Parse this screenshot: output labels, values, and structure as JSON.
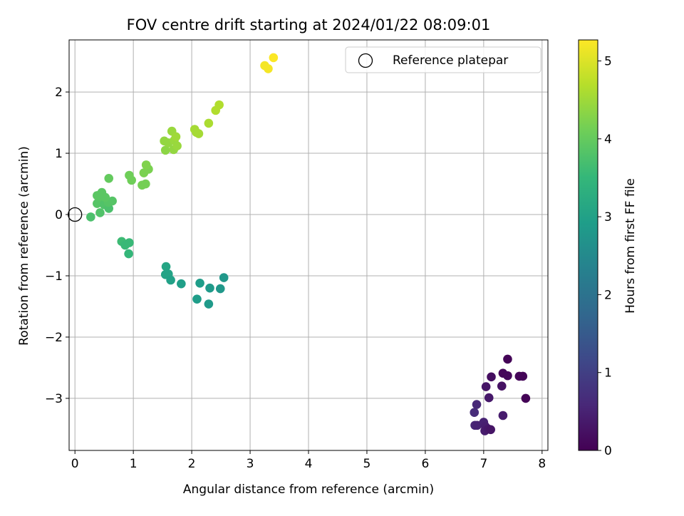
{
  "chart_data": {
    "type": "scatter",
    "title": "FOV centre drift starting at 2024/01/22 08:09:01",
    "xlabel": "Angular distance from reference (arcmin)",
    "ylabel": "Rotation from reference (arcmin)",
    "xlim": [
      -0.1,
      8.1
    ],
    "ylim": [
      -3.85,
      2.85
    ],
    "xticks": [
      0,
      1,
      2,
      3,
      4,
      5,
      6,
      7,
      8
    ],
    "yticks": [
      -3,
      -2,
      -1,
      0,
      1,
      2
    ],
    "grid": true,
    "legend": {
      "position": "top-right",
      "entries": [
        "Reference platepar"
      ]
    },
    "reference_point": {
      "name": "Reference platepar",
      "x": 0,
      "y": 0
    },
    "colorbar": {
      "label": "Hours from first FF file",
      "range": [
        0,
        5.27
      ],
      "ticks": [
        0,
        1,
        2,
        3,
        4,
        5
      ],
      "colormap": [
        "#440154",
        "#482878",
        "#3e4989",
        "#31688e",
        "#26828e",
        "#1f9e89",
        "#35b779",
        "#6ece58",
        "#b5de2b",
        "#fde725"
      ]
    },
    "points": [
      {
        "x": 7.41,
        "y": -2.36,
        "c": 0.05
      },
      {
        "x": 7.33,
        "y": -2.59,
        "c": 0.1
      },
      {
        "x": 7.41,
        "y": -2.63,
        "c": 0.12
      },
      {
        "x": 7.61,
        "y": -2.64,
        "c": 0.08
      },
      {
        "x": 7.67,
        "y": -2.64,
        "c": 0.06
      },
      {
        "x": 7.72,
        "y": -3.0,
        "c": 0.04
      },
      {
        "x": 7.13,
        "y": -2.65,
        "c": 0.2
      },
      {
        "x": 7.04,
        "y": -2.81,
        "c": 0.3
      },
      {
        "x": 7.31,
        "y": -2.8,
        "c": 0.25
      },
      {
        "x": 7.09,
        "y": -2.99,
        "c": 0.35
      },
      {
        "x": 7.33,
        "y": -3.28,
        "c": 0.4
      },
      {
        "x": 6.88,
        "y": -3.1,
        "c": 0.6
      },
      {
        "x": 6.84,
        "y": -3.23,
        "c": 0.65
      },
      {
        "x": 6.85,
        "y": -3.44,
        "c": 0.55
      },
      {
        "x": 6.89,
        "y": -3.44,
        "c": 0.5
      },
      {
        "x": 7.0,
        "y": -3.39,
        "c": 0.5
      },
      {
        "x": 7.03,
        "y": -3.46,
        "c": 0.45
      },
      {
        "x": 7.02,
        "y": -3.53,
        "c": 0.4
      },
      {
        "x": 7.08,
        "y": -3.5,
        "c": 0.35
      },
      {
        "x": 7.12,
        "y": -3.51,
        "c": 0.3
      },
      {
        "x": 1.56,
        "y": -0.85,
        "c": 3.1
      },
      {
        "x": 1.55,
        "y": -0.98,
        "c": 3.05
      },
      {
        "x": 1.6,
        "y": -0.97,
        "c": 3.05
      },
      {
        "x": 1.64,
        "y": -1.07,
        "c": 3.0
      },
      {
        "x": 1.82,
        "y": -1.13,
        "c": 2.95
      },
      {
        "x": 2.14,
        "y": -1.12,
        "c": 2.9
      },
      {
        "x": 2.09,
        "y": -1.38,
        "c": 2.9
      },
      {
        "x": 2.31,
        "y": -1.2,
        "c": 2.85
      },
      {
        "x": 2.29,
        "y": -1.46,
        "c": 2.85
      },
      {
        "x": 2.49,
        "y": -1.21,
        "c": 2.8
      },
      {
        "x": 2.55,
        "y": -1.03,
        "c": 2.8
      },
      {
        "x": 0.8,
        "y": -0.44,
        "c": 3.6
      },
      {
        "x": 0.93,
        "y": -0.46,
        "c": 3.55
      },
      {
        "x": 0.86,
        "y": -0.5,
        "c": 3.55
      },
      {
        "x": 0.92,
        "y": -0.64,
        "c": 3.5
      },
      {
        "x": 0.27,
        "y": -0.04,
        "c": 3.75
      },
      {
        "x": 0.43,
        "y": 0.03,
        "c": 3.8
      },
      {
        "x": 0.38,
        "y": 0.18,
        "c": 3.85
      },
      {
        "x": 0.45,
        "y": 0.22,
        "c": 3.85
      },
      {
        "x": 0.5,
        "y": 0.16,
        "c": 3.8
      },
      {
        "x": 0.58,
        "y": 0.1,
        "c": 3.75
      },
      {
        "x": 0.57,
        "y": 0.2,
        "c": 3.85
      },
      {
        "x": 0.64,
        "y": 0.22,
        "c": 3.85
      },
      {
        "x": 0.38,
        "y": 0.31,
        "c": 3.9
      },
      {
        "x": 0.46,
        "y": 0.36,
        "c": 3.9
      },
      {
        "x": 0.43,
        "y": 0.3,
        "c": 3.9
      },
      {
        "x": 0.52,
        "y": 0.28,
        "c": 3.9
      },
      {
        "x": 0.58,
        "y": 0.59,
        "c": 4.0
      },
      {
        "x": 0.93,
        "y": 0.64,
        "c": 4.1
      },
      {
        "x": 0.97,
        "y": 0.56,
        "c": 4.1
      },
      {
        "x": 1.15,
        "y": 0.48,
        "c": 4.15
      },
      {
        "x": 1.21,
        "y": 0.5,
        "c": 4.15
      },
      {
        "x": 1.18,
        "y": 0.68,
        "c": 4.2
      },
      {
        "x": 1.26,
        "y": 0.74,
        "c": 4.2
      },
      {
        "x": 1.22,
        "y": 0.81,
        "c": 4.25
      },
      {
        "x": 1.53,
        "y": 1.2,
        "c": 4.4
      },
      {
        "x": 1.55,
        "y": 1.05,
        "c": 4.35
      },
      {
        "x": 1.6,
        "y": 1.17,
        "c": 4.4
      },
      {
        "x": 1.66,
        "y": 1.36,
        "c": 4.45
      },
      {
        "x": 1.69,
        "y": 1.06,
        "c": 4.4
      },
      {
        "x": 1.7,
        "y": 1.21,
        "c": 4.45
      },
      {
        "x": 1.73,
        "y": 1.27,
        "c": 4.5
      },
      {
        "x": 1.75,
        "y": 1.12,
        "c": 4.45
      },
      {
        "x": 2.05,
        "y": 1.39,
        "c": 4.55
      },
      {
        "x": 2.08,
        "y": 1.34,
        "c": 4.55
      },
      {
        "x": 2.12,
        "y": 1.32,
        "c": 4.55
      },
      {
        "x": 2.29,
        "y": 1.49,
        "c": 4.6
      },
      {
        "x": 2.41,
        "y": 1.7,
        "c": 4.65
      },
      {
        "x": 2.47,
        "y": 1.79,
        "c": 4.65
      },
      {
        "x": 3.25,
        "y": 2.43,
        "c": 5.2
      },
      {
        "x": 3.31,
        "y": 2.38,
        "c": 5.2
      },
      {
        "x": 3.4,
        "y": 2.56,
        "c": 5.25
      }
    ]
  }
}
